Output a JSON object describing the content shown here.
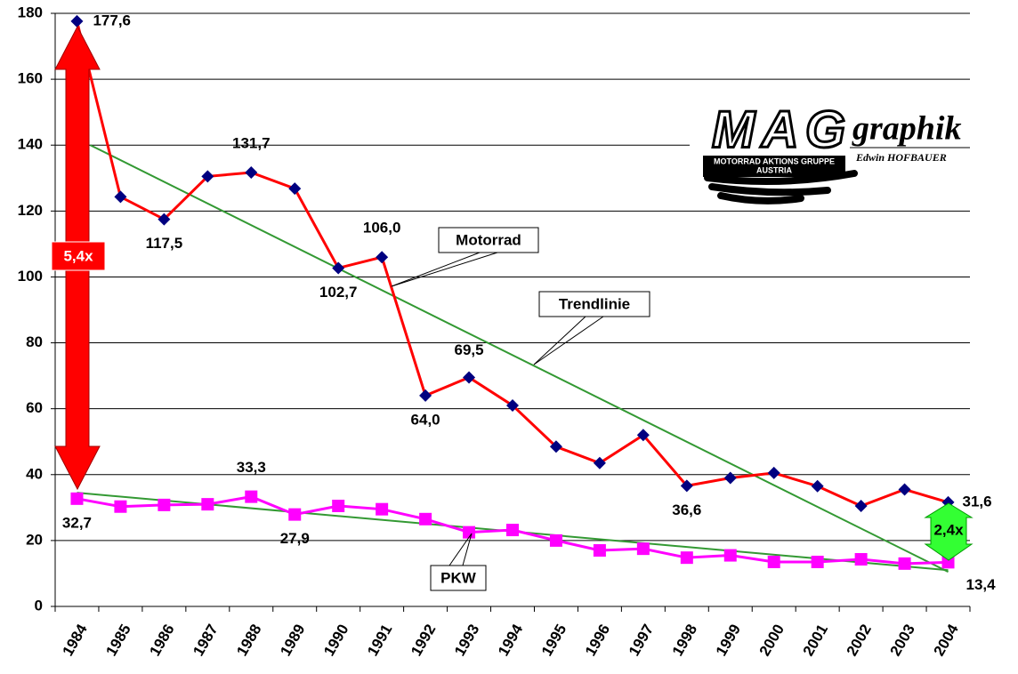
{
  "chart_data": {
    "type": "line",
    "categories": [
      "1984",
      "1985",
      "1986",
      "1987",
      "1988",
      "1989",
      "1990",
      "1991",
      "1992",
      "1993",
      "1994",
      "1995",
      "1996",
      "1997",
      "1998",
      "1999",
      "2000",
      "2001",
      "2002",
      "2003",
      "2004"
    ],
    "series": [
      {
        "name": "Motorrad",
        "color": "#ff0000",
        "marker_color": "#000080",
        "marker": "diamond",
        "values": [
          177.6,
          124.3,
          117.5,
          130.5,
          131.7,
          126.8,
          102.7,
          106.0,
          64.0,
          69.5,
          61.0,
          48.5,
          43.5,
          52.0,
          36.6,
          39.0,
          40.5,
          36.5,
          30.5,
          35.5,
          31.6
        ],
        "value_labels": [
          "177,6",
          null,
          "117,5",
          null,
          "131,7",
          null,
          "102,7",
          "106,0",
          "64,0",
          "69,5",
          null,
          null,
          null,
          null,
          "36,6",
          null,
          null,
          null,
          null,
          null,
          "31,6"
        ],
        "trend": [
          140,
          10.5
        ]
      },
      {
        "name": "PKW",
        "color": "#ff00ff",
        "marker_color": "#ff00ff",
        "marker": "square",
        "values": [
          32.7,
          30.3,
          30.8,
          31.0,
          33.3,
          27.9,
          30.5,
          29.5,
          26.5,
          22.5,
          23.2,
          20.0,
          17.0,
          17.5,
          14.8,
          15.5,
          13.5,
          13.5,
          14.3,
          13.0,
          13.4
        ],
        "value_labels": [
          "32,7",
          null,
          null,
          null,
          "33,3",
          "27,9",
          null,
          null,
          null,
          null,
          null,
          null,
          null,
          null,
          null,
          null,
          null,
          null,
          null,
          null,
          "13,4"
        ],
        "trend": [
          34.5,
          11
        ]
      }
    ],
    "trend_name": "Trendlinie",
    "trend_color": "#339933",
    "ylim": [
      0,
      180
    ],
    "yticks": [
      0,
      20,
      40,
      60,
      80,
      100,
      120,
      140,
      160,
      180
    ],
    "grid": true,
    "annotations": {
      "ratio_motorrad": "5,4x",
      "ratio_end": "2,4x"
    },
    "logo": {
      "main": "MAG",
      "script": "graphik",
      "line1": "MOTORRAD AKTIONS GRUPPE",
      "line2": "AUSTRIA",
      "author": "Edwin HOFBAUER"
    }
  }
}
